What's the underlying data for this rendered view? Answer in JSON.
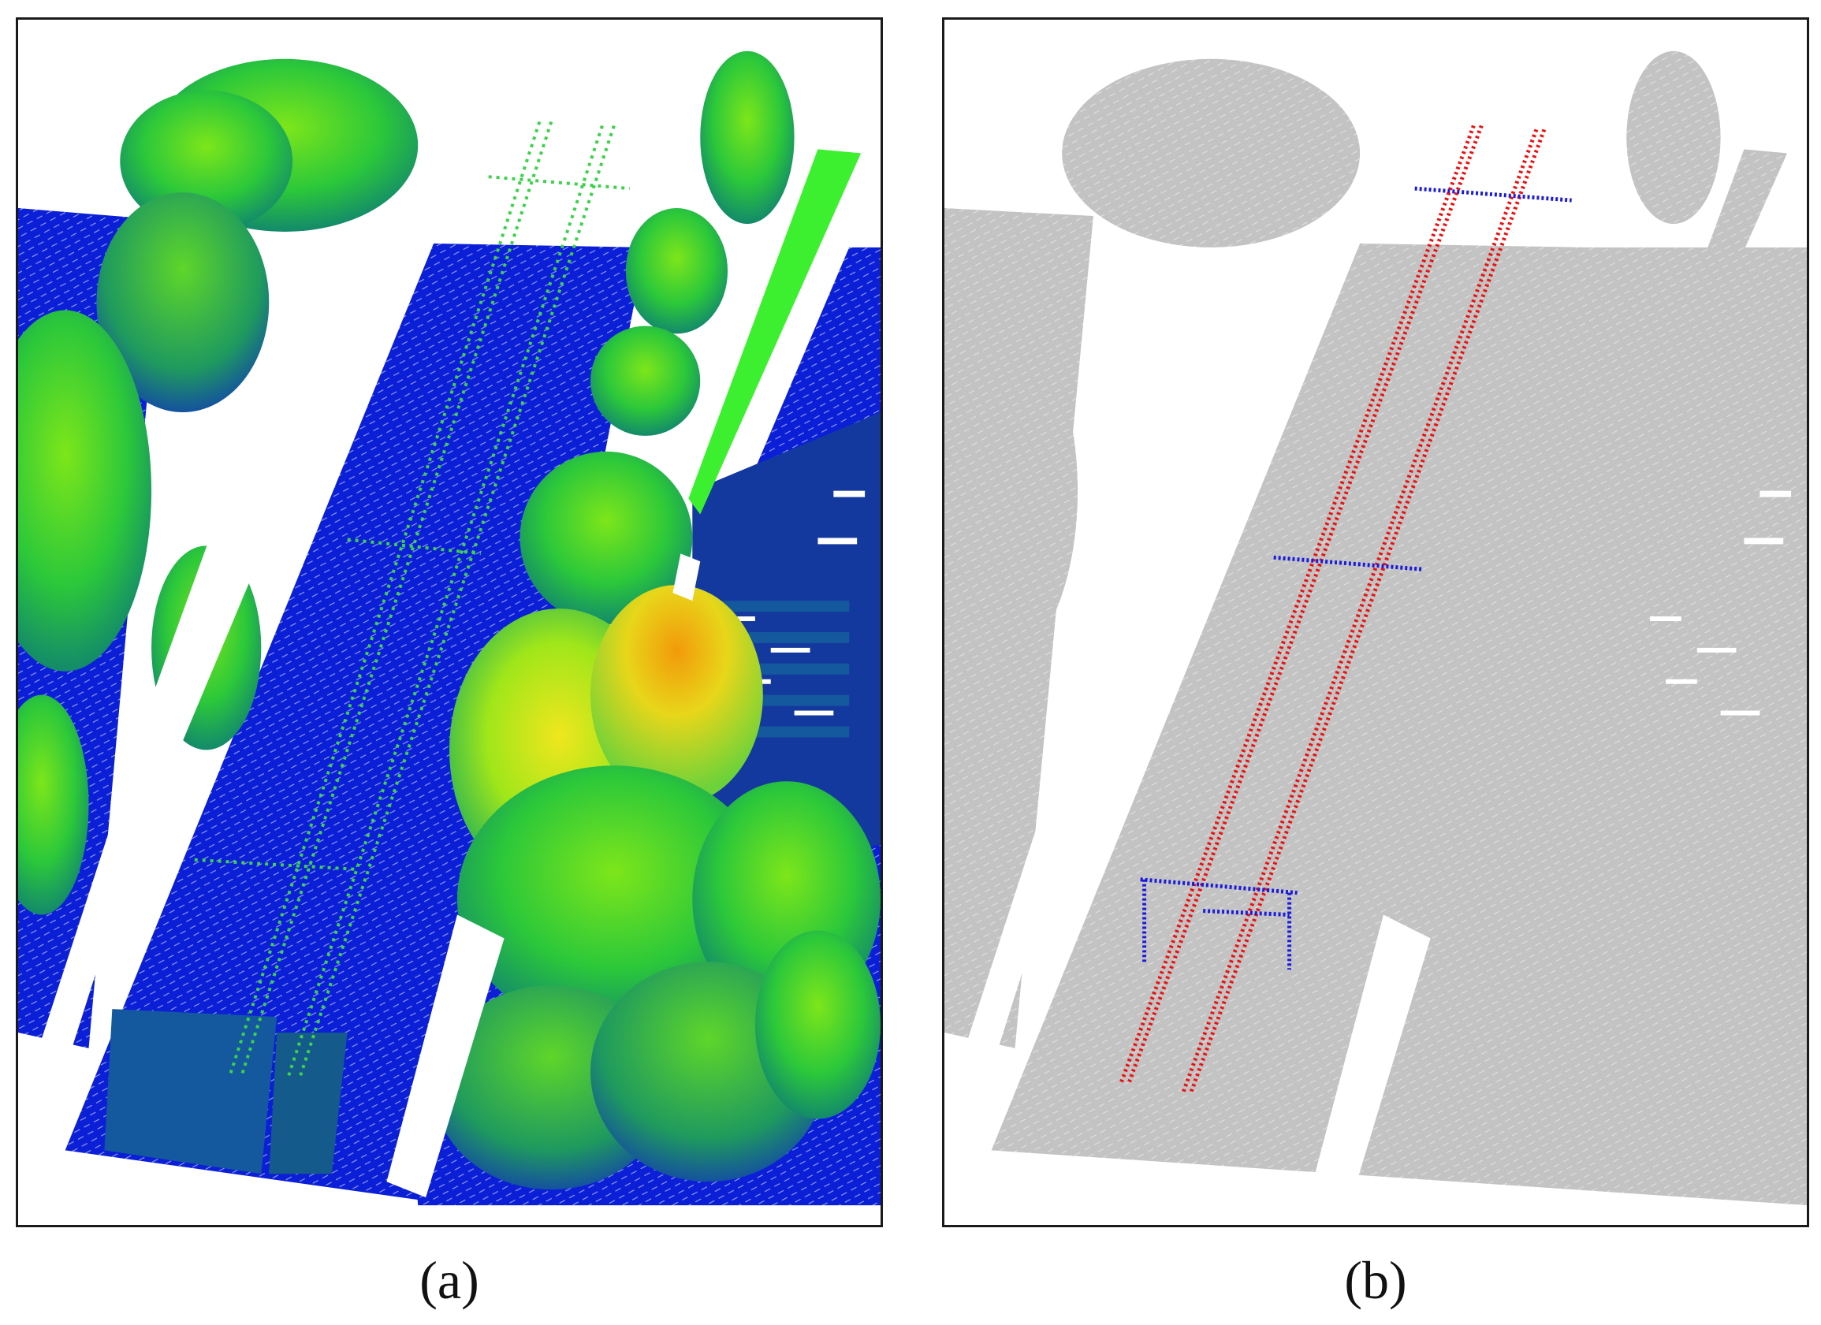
{
  "panels": [
    {
      "caption": "(a)"
    },
    {
      "caption": "(b)"
    }
  ],
  "colors": {
    "ground": "#0a1fd6",
    "ground_dark": "#14399e",
    "vegetation_low": "#1fbf3a",
    "vegetation_mid": "#8ee61a",
    "vegetation_high": "#e8e21a",
    "vegetation_top": "#f2a20a",
    "wire_green": "#3cd24a",
    "background_gray": "#c3c3c3",
    "powerline": "#ee1111",
    "pylon": "#1a1ae0"
  }
}
